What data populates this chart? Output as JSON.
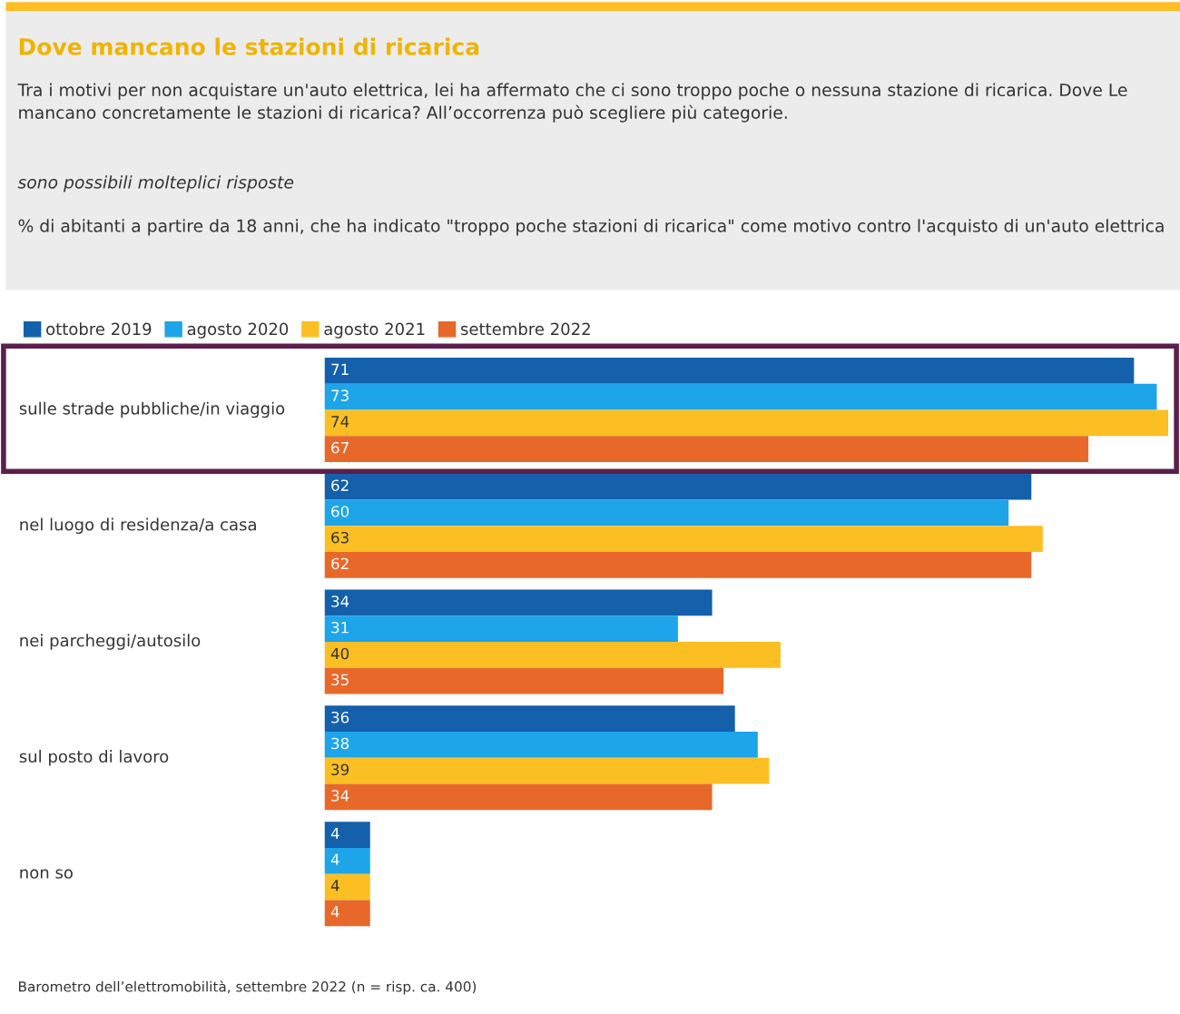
{
  "chart_data": {
    "type": "bar",
    "orientation": "horizontal",
    "title": "Dove mancano le stazioni di ricarica",
    "subtitle": "Tra i motivi per non acquistare un'auto elettrica, lei ha affermato che ci sono troppo poche o nessuna stazione di ricarica. Dove Le mancano concretamente le stazioni di ricarica? All’occorrenza può scegliere più categorie.",
    "annotations": [
      "sono possibili molteplici risposte",
      "% di abitanti a partire da 18 anni, che ha indicato \"troppo poche stazioni di ricarica\" come motivo contro l'acquisto di un'auto elettrica",
      "Barometro dell’elettromobilità, settembre 2022 (n = risp. ca. 400)"
    ],
    "categories": [
      "sulle strade pubbliche/in viaggio",
      "nel luogo di residenza/a casa",
      "nei parcheggi/autosilo",
      "sul posto di lavoro",
      "non so"
    ],
    "series": [
      {
        "name": "ottobre 2019",
        "color": "#1460aa",
        "values": [
          71,
          62,
          34,
          36,
          4
        ]
      },
      {
        "name": "agosto 2020",
        "color": "#1ea4e8",
        "values": [
          73,
          60,
          31,
          38,
          4
        ]
      },
      {
        "name": "agosto 2021",
        "color": "#fbbf24",
        "values": [
          74,
          63,
          40,
          39,
          4
        ]
      },
      {
        "name": "settembre 2022",
        "color": "#e8682a",
        "values": [
          67,
          62,
          35,
          34,
          4
        ]
      }
    ],
    "data_labels": true,
    "legend": "top left",
    "tick_labels": "y"
  }
}
